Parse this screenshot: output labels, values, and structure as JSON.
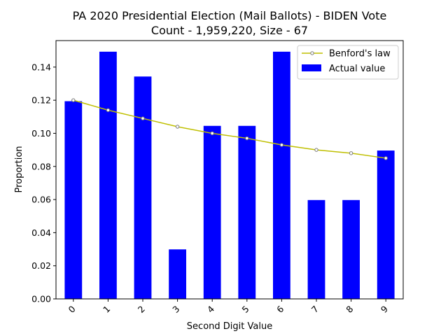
{
  "chart_data": {
    "type": "bar",
    "title": "PA 2020 Presidential Election (Mail Ballots) - BIDEN Vote",
    "subtitle": "Count - 1,959,220, Size - 67",
    "xlabel": "Second Digit Value",
    "ylabel": "Proportion",
    "categories": [
      "0",
      "1",
      "2",
      "3",
      "4",
      "5",
      "6",
      "7",
      "8",
      "9"
    ],
    "ylim": [
      0,
      0.156
    ],
    "yticks": [
      "0.00",
      "0.02",
      "0.04",
      "0.06",
      "0.08",
      "0.10",
      "0.12",
      "0.14"
    ],
    "grid": false,
    "legend_position": "top-right",
    "series": [
      {
        "name": "Benford's law",
        "kind": "line",
        "color": "#bfbf00",
        "values": [
          0.12,
          0.114,
          0.109,
          0.104,
          0.1,
          0.097,
          0.093,
          0.09,
          0.088,
          0.085
        ]
      },
      {
        "name": "Actual value",
        "kind": "bar",
        "color": "#0000ff",
        "values": [
          0.1194,
          0.1493,
          0.1343,
          0.0299,
          0.1045,
          0.1045,
          0.1493,
          0.0597,
          0.0597,
          0.0896
        ]
      }
    ]
  }
}
